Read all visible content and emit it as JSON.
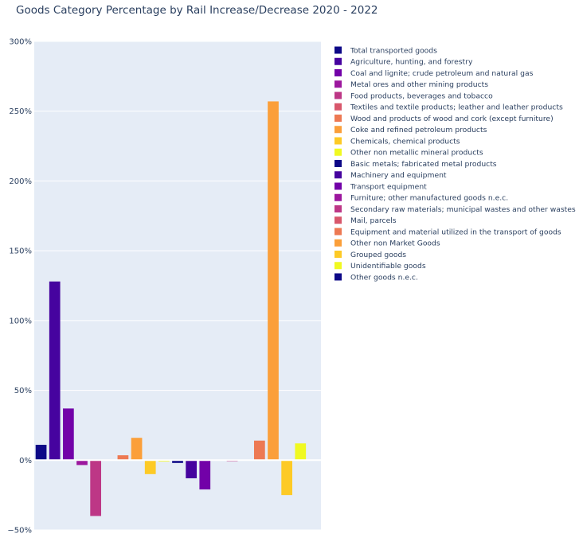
{
  "chart_data": {
    "type": "bar",
    "title": "Goods Category Percentage by Rail Increase/Decrease 2020 - 2022",
    "xlabel": "",
    "ylabel": "",
    "ylim": [
      -50,
      300
    ],
    "yticks": [
      -50,
      0,
      50,
      100,
      150,
      200,
      250,
      300
    ],
    "ytick_labels": [
      "−50%",
      "0%",
      "50%",
      "100%",
      "150%",
      "200%",
      "250%",
      "300%"
    ],
    "grid": true,
    "legend_position": "right",
    "series": [
      {
        "name": "Total transported goods",
        "value": 11,
        "color": "#0d0887"
      },
      {
        "name": "Agriculture, hunting, and forestry",
        "value": 128,
        "color": "#46039f"
      },
      {
        "name": "Coal and lignite; crude petroleum and natural gas",
        "value": 37,
        "color": "#7201a8"
      },
      {
        "name": "Metal ores and other mining products",
        "value": -3.5,
        "color": "#9c179e"
      },
      {
        "name": "Food products, beverages and tobacco",
        "value": -40,
        "color": "#bd3786"
      },
      {
        "name": "Textiles and textile products; leather and leather products",
        "value": 0,
        "color": "#d8576b"
      },
      {
        "name": "Wood and products of wood and cork (except furniture)",
        "value": 3.5,
        "color": "#ed7953"
      },
      {
        "name": "Coke and refined petroleum products",
        "value": 16,
        "color": "#fb9f3a"
      },
      {
        "name": "Chemicals, chemical products",
        "value": -10,
        "color": "#fdca26"
      },
      {
        "name": "Other non metallic mineral products",
        "value": -1,
        "color": "#f0f921"
      },
      {
        "name": "Basic metals; fabricated metal products",
        "value": -2,
        "color": "#0d0887"
      },
      {
        "name": "Machinery and equipment",
        "value": -13,
        "color": "#46039f"
      },
      {
        "name": "Transport equipment",
        "value": -21,
        "color": "#7201a8"
      },
      {
        "name": "Furniture; other manufactured goods n.e.c.",
        "value": 0,
        "color": "#9c179e"
      },
      {
        "name": "Secondary raw materials; municipal wastes and other wastes",
        "value": -0.8,
        "color": "#bd3786"
      },
      {
        "name": "Mail, parcels",
        "value": 0,
        "color": "#d8576b"
      },
      {
        "name": "Equipment and material utilized in the transport of goods",
        "value": 14,
        "color": "#ed7953"
      },
      {
        "name": "Other non Market Goods",
        "value": 257,
        "color": "#fb9f3a"
      },
      {
        "name": "Grouped goods",
        "value": -25,
        "color": "#fdca26"
      },
      {
        "name": "Unidentifiable goods",
        "value": 12,
        "color": "#f0f921"
      },
      {
        "name": "Other goods n.e.c.",
        "value": 0,
        "color": "#0d0887"
      }
    ]
  }
}
